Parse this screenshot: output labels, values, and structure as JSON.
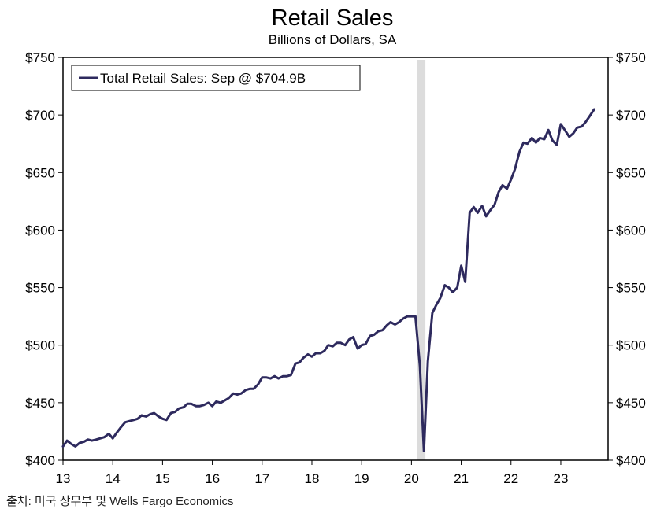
{
  "chart_data": {
    "type": "line",
    "title": "Retail Sales",
    "subtitle": "Billions of Dollars, SA",
    "source": "출처: 미국 상무부 및 Wells Fargo Economics",
    "y_ticks": [
      "$400",
      "$450",
      "$500",
      "$550",
      "$600",
      "$650",
      "$700",
      "$750"
    ],
    "y_tick_values": [
      400,
      450,
      500,
      550,
      600,
      650,
      700,
      750
    ],
    "x_ticks": [
      "13",
      "14",
      "15",
      "16",
      "17",
      "18",
      "19",
      "20",
      "21",
      "22",
      "23"
    ],
    "x_tick_values": [
      2013,
      2014,
      2015,
      2016,
      2017,
      2018,
      2019,
      2020,
      2021,
      2022,
      2023
    ],
    "xlim": [
      2013,
      2023.95
    ],
    "ylim": [
      400,
      750
    ],
    "legend": {
      "label": "Total Retail Sales: Sep @ $704.9B",
      "position": "top-left"
    },
    "recession_shading": {
      "start": 2020.12,
      "end": 2020.28,
      "color": "#dcdcdc"
    },
    "series": [
      {
        "name": "Total Retail Sales",
        "color": "#2e2a5e",
        "points": [
          [
            2013.0,
            412
          ],
          [
            2013.08,
            417
          ],
          [
            2013.17,
            414
          ],
          [
            2013.25,
            412
          ],
          [
            2013.33,
            415
          ],
          [
            2013.42,
            416
          ],
          [
            2013.5,
            418
          ],
          [
            2013.58,
            417
          ],
          [
            2013.67,
            418
          ],
          [
            2013.75,
            419
          ],
          [
            2013.83,
            420
          ],
          [
            2013.92,
            423
          ],
          [
            2014.0,
            419
          ],
          [
            2014.08,
            424
          ],
          [
            2014.17,
            429
          ],
          [
            2014.25,
            433
          ],
          [
            2014.33,
            434
          ],
          [
            2014.42,
            435
          ],
          [
            2014.5,
            436
          ],
          [
            2014.58,
            439
          ],
          [
            2014.67,
            438
          ],
          [
            2014.75,
            440
          ],
          [
            2014.83,
            441
          ],
          [
            2014.92,
            438
          ],
          [
            2015.0,
            436
          ],
          [
            2015.08,
            435
          ],
          [
            2015.17,
            441
          ],
          [
            2015.25,
            442
          ],
          [
            2015.33,
            445
          ],
          [
            2015.42,
            446
          ],
          [
            2015.5,
            449
          ],
          [
            2015.58,
            449
          ],
          [
            2015.67,
            447
          ],
          [
            2015.75,
            447
          ],
          [
            2015.83,
            448
          ],
          [
            2015.92,
            450
          ],
          [
            2016.0,
            447
          ],
          [
            2016.08,
            451
          ],
          [
            2016.17,
            450
          ],
          [
            2016.25,
            452
          ],
          [
            2016.33,
            454
          ],
          [
            2016.42,
            458
          ],
          [
            2016.5,
            457
          ],
          [
            2016.58,
            458
          ],
          [
            2016.67,
            461
          ],
          [
            2016.75,
            462
          ],
          [
            2016.83,
            462
          ],
          [
            2016.92,
            466
          ],
          [
            2017.0,
            472
          ],
          [
            2017.08,
            472
          ],
          [
            2017.17,
            471
          ],
          [
            2017.25,
            473
          ],
          [
            2017.33,
            471
          ],
          [
            2017.42,
            473
          ],
          [
            2017.5,
            473
          ],
          [
            2017.58,
            474
          ],
          [
            2017.67,
            484
          ],
          [
            2017.75,
            485
          ],
          [
            2017.83,
            489
          ],
          [
            2017.92,
            492
          ],
          [
            2018.0,
            490
          ],
          [
            2018.08,
            493
          ],
          [
            2018.17,
            493
          ],
          [
            2018.25,
            495
          ],
          [
            2018.33,
            500
          ],
          [
            2018.42,
            499
          ],
          [
            2018.5,
            502
          ],
          [
            2018.58,
            502
          ],
          [
            2018.67,
            500
          ],
          [
            2018.75,
            505
          ],
          [
            2018.83,
            507
          ],
          [
            2018.92,
            497
          ],
          [
            2019.0,
            500
          ],
          [
            2019.08,
            501
          ],
          [
            2019.17,
            508
          ],
          [
            2019.25,
            509
          ],
          [
            2019.33,
            512
          ],
          [
            2019.42,
            513
          ],
          [
            2019.5,
            517
          ],
          [
            2019.58,
            520
          ],
          [
            2019.67,
            518
          ],
          [
            2019.75,
            520
          ],
          [
            2019.83,
            523
          ],
          [
            2019.92,
            525
          ],
          [
            2020.0,
            525
          ],
          [
            2020.08,
            525
          ],
          [
            2020.17,
            482
          ],
          [
            2020.25,
            408
          ],
          [
            2020.33,
            486
          ],
          [
            2020.42,
            528
          ],
          [
            2020.5,
            535
          ],
          [
            2020.58,
            541
          ],
          [
            2020.67,
            552
          ],
          [
            2020.75,
            550
          ],
          [
            2020.83,
            546
          ],
          [
            2020.92,
            550
          ],
          [
            2021.0,
            569
          ],
          [
            2021.08,
            555
          ],
          [
            2021.17,
            615
          ],
          [
            2021.25,
            620
          ],
          [
            2021.33,
            615
          ],
          [
            2021.42,
            621
          ],
          [
            2021.5,
            612
          ],
          [
            2021.58,
            617
          ],
          [
            2021.67,
            622
          ],
          [
            2021.75,
            633
          ],
          [
            2021.83,
            639
          ],
          [
            2021.92,
            636
          ],
          [
            2022.0,
            644
          ],
          [
            2022.08,
            653
          ],
          [
            2022.17,
            668
          ],
          [
            2022.25,
            676
          ],
          [
            2022.33,
            675
          ],
          [
            2022.42,
            680
          ],
          [
            2022.5,
            676
          ],
          [
            2022.58,
            680
          ],
          [
            2022.67,
            679
          ],
          [
            2022.75,
            687
          ],
          [
            2022.83,
            678
          ],
          [
            2022.92,
            674
          ],
          [
            2023.0,
            692
          ],
          [
            2023.08,
            687
          ],
          [
            2023.17,
            681
          ],
          [
            2023.25,
            684
          ],
          [
            2023.33,
            689
          ],
          [
            2023.42,
            690
          ],
          [
            2023.5,
            694
          ],
          [
            2023.58,
            699
          ],
          [
            2023.67,
            704.9
          ]
        ]
      }
    ]
  }
}
